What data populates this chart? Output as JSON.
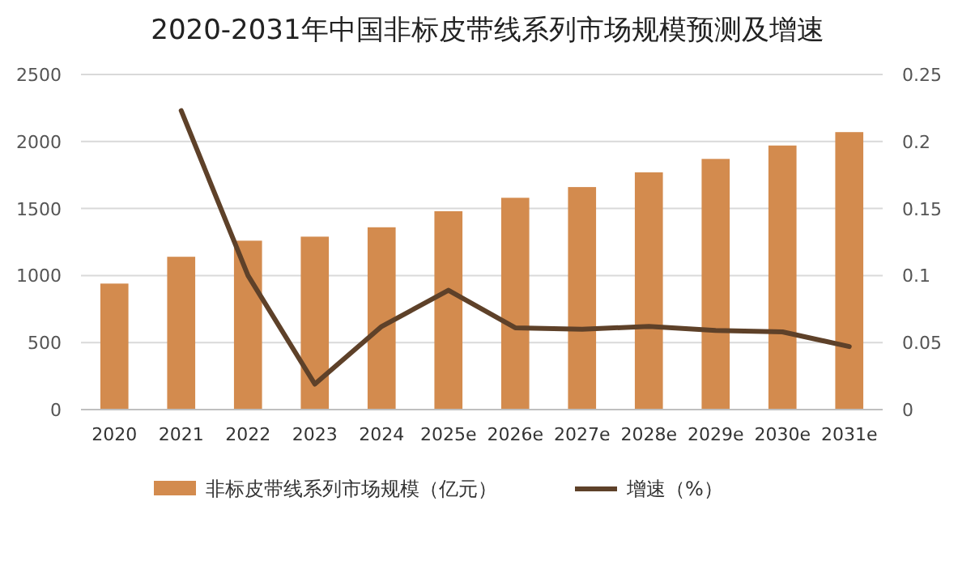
{
  "chart_data": {
    "type": "bar",
    "title": "2020-2031年中国非标皮带线系列市场规模预测及增速",
    "categories": [
      "2020",
      "2021",
      "2022",
      "2023",
      "2024",
      "2025e",
      "2026e",
      "2027e",
      "2028e",
      "2029e",
      "2030e",
      "2031e"
    ],
    "series": [
      {
        "name": "非标皮带线系列市场规模（亿元）",
        "color": "#d38b4e",
        "values": [
          940,
          1140,
          1260,
          1290,
          1360,
          1480,
          1580,
          1660,
          1770,
          1870,
          1970,
          2070
        ]
      },
      {
        "name": "增速（%）",
        "type": "line",
        "axis": "y2",
        "color": "#5e4129",
        "values": [
          null,
          0.223,
          0.1,
          0.019,
          0.062,
          0.089,
          0.061,
          0.06,
          0.062,
          0.059,
          0.058,
          0.047
        ]
      }
    ],
    "ylim": [
      0,
      2500
    ],
    "yticks": [
      0,
      500,
      1000,
      1500,
      2000,
      2500
    ],
    "y2lim": [
      0,
      0.25
    ],
    "y2ticks": [
      0,
      0.05,
      0.1,
      0.15,
      0.2,
      0.25
    ],
    "grid": "y",
    "legend": "bottom"
  }
}
